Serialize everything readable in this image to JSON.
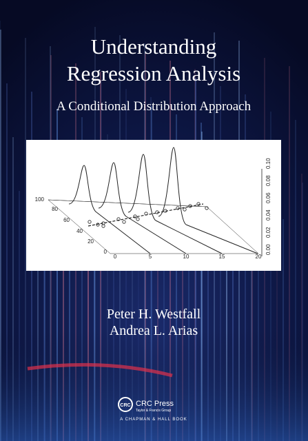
{
  "cover": {
    "title": [
      "Understanding",
      "Regression Analysis"
    ],
    "subtitle": "A Conditional Distribution Approach",
    "figure": {
      "depth_ticks": [
        "100",
        "80",
        "60",
        "40",
        "20",
        "0"
      ],
      "x_ticks": [
        "0",
        "5",
        "10",
        "15",
        "20"
      ],
      "density_ticks": [
        "0.00",
        "0.02",
        "0.04",
        "0.06",
        "0.08",
        "0.10"
      ]
    },
    "authors": [
      "Peter H. Westfall",
      "Andrea L. Arias"
    ],
    "publisher": {
      "logo": "CRC",
      "name": "CRC Press",
      "group": "Taylor & Francis Group",
      "imprint": "A CHAPMAN & HALL BOOK"
    }
  }
}
